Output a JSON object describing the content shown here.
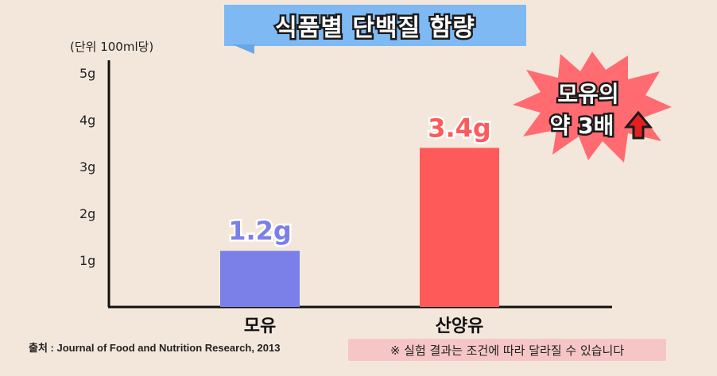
{
  "title": "식품별 단백질 함량",
  "unit": "(단위 100ml당)",
  "source": "출처 : Journal of Food and Nutrition Research, 2013",
  "note": "※ 실험 결과는 조건에 따라 달라질 수 있습니다",
  "callout": {
    "line1": "모유의",
    "line2": "약 3배",
    "arrow_icon": "up-arrow-icon"
  },
  "colors": {
    "bar1": "#7a80e8",
    "bar2": "#ff5a5a",
    "label1": "#7a80e8",
    "label2": "#ff5a5a",
    "burst": "#ff6b70"
  },
  "chart_data": {
    "type": "bar",
    "categories": [
      "모유",
      "산양유"
    ],
    "values": [
      1.2,
      3.4
    ],
    "value_labels": [
      "1.2g",
      "3.4g"
    ],
    "title": "식품별 단백질 함량",
    "xlabel": "",
    "ylabel": "",
    "ylim": [
      0,
      5
    ],
    "yticks": [
      1,
      2,
      3,
      4,
      5
    ],
    "ytick_labels": [
      "1g",
      "2g",
      "3g",
      "4g",
      "5g"
    ],
    "grid": false,
    "legend": "none"
  }
}
